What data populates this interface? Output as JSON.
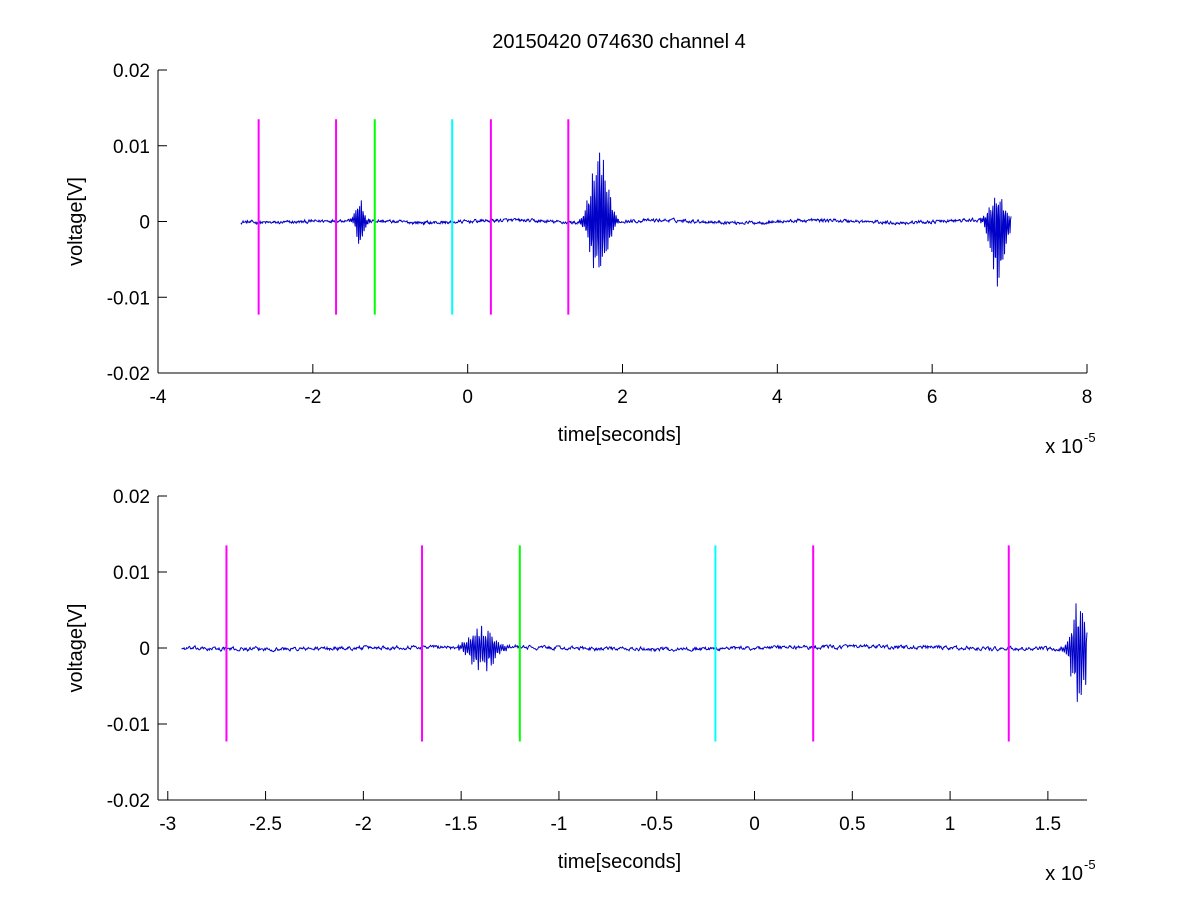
{
  "figure": {
    "title": "20150420 074630 channel 4"
  },
  "chart_data": [
    {
      "type": "line",
      "title": "20150420 074630 channel 4",
      "xlabel": "time[seconds]",
      "ylabel": "voltage[V]",
      "x_exponent_label": "x 10",
      "x_exponent": "-5",
      "xlim": [
        -4,
        8
      ],
      "ylim": [
        -0.02,
        0.02
      ],
      "xticks": [
        -4,
        -2,
        0,
        2,
        4,
        6,
        8
      ],
      "xtick_labels": [
        "-4",
        "-2",
        "0",
        "2",
        "4",
        "6",
        "8"
      ],
      "yticks": [
        -0.02,
        -0.01,
        0,
        0.01,
        0.02
      ],
      "ytick_labels": [
        "-0.02",
        "-0.01",
        "0",
        "0.01",
        "0.02"
      ],
      "grid": false,
      "signal": {
        "color": "#0000c8",
        "x_range": [
          -2.93,
          7.02
        ],
        "baseline": 0.0,
        "noise_amplitude": 0.0004,
        "bursts": [
          {
            "center": -1.39,
            "width": 0.1,
            "peak_max": 0.003,
            "peak_min": -0.0038
          },
          {
            "center": 1.7,
            "width": 0.2,
            "peak_max": 0.0123,
            "peak_min": -0.0092
          },
          {
            "center": 6.85,
            "width": 0.18,
            "peak_max": 0.0043,
            "peak_min": -0.011
          }
        ]
      },
      "markers": [
        {
          "x": -2.7,
          "color": "#ff00ff"
        },
        {
          "x": -1.7,
          "color": "#ff00ff"
        },
        {
          "x": -1.2,
          "color": "#00ff00"
        },
        {
          "x": -0.2,
          "color": "#00ffff"
        },
        {
          "x": 0.3,
          "color": "#ff00ff"
        },
        {
          "x": 1.3,
          "color": "#ff00ff"
        }
      ],
      "marker_yrange": [
        -0.0123,
        0.0135
      ]
    },
    {
      "type": "line",
      "xlabel": "time[seconds]",
      "ylabel": "voltage[V]",
      "x_exponent_label": "x 10",
      "x_exponent": "-5",
      "xlim": [
        -3.05,
        1.7
      ],
      "ylim": [
        -0.02,
        0.02
      ],
      "xticks": [
        -3,
        -2.5,
        -2,
        -1.5,
        -1,
        -0.5,
        0,
        0.5,
        1,
        1.5
      ],
      "xtick_labels": [
        "-3",
        "-2.5",
        "-2",
        "-1.5",
        "-1",
        "-0.5",
        "0",
        "0.5",
        "1",
        "1.5"
      ],
      "yticks": [
        -0.02,
        -0.01,
        0,
        0.01,
        0.02
      ],
      "ytick_labels": [
        "-0.02",
        "-0.01",
        "0",
        "0.01",
        "0.02"
      ],
      "grid": false,
      "signal": {
        "color": "#0000c8",
        "x_range": [
          -2.93,
          1.7
        ],
        "baseline": 0.0,
        "noise_amplitude": 0.00045,
        "bursts": [
          {
            "center": -1.39,
            "width": 0.12,
            "peak_max": 0.003,
            "peak_min": -0.0038
          },
          {
            "center": 1.66,
            "width": 0.07,
            "peak_max": 0.0077,
            "peak_min": -0.0092
          }
        ]
      },
      "markers": [
        {
          "x": -2.7,
          "color": "#ff00ff"
        },
        {
          "x": -1.7,
          "color": "#ff00ff"
        },
        {
          "x": -1.2,
          "color": "#00ff00"
        },
        {
          "x": -0.2,
          "color": "#00ffff"
        },
        {
          "x": 0.3,
          "color": "#ff00ff"
        },
        {
          "x": 1.3,
          "color": "#ff00ff"
        }
      ],
      "marker_yrange": [
        -0.0123,
        0.0135
      ]
    }
  ]
}
